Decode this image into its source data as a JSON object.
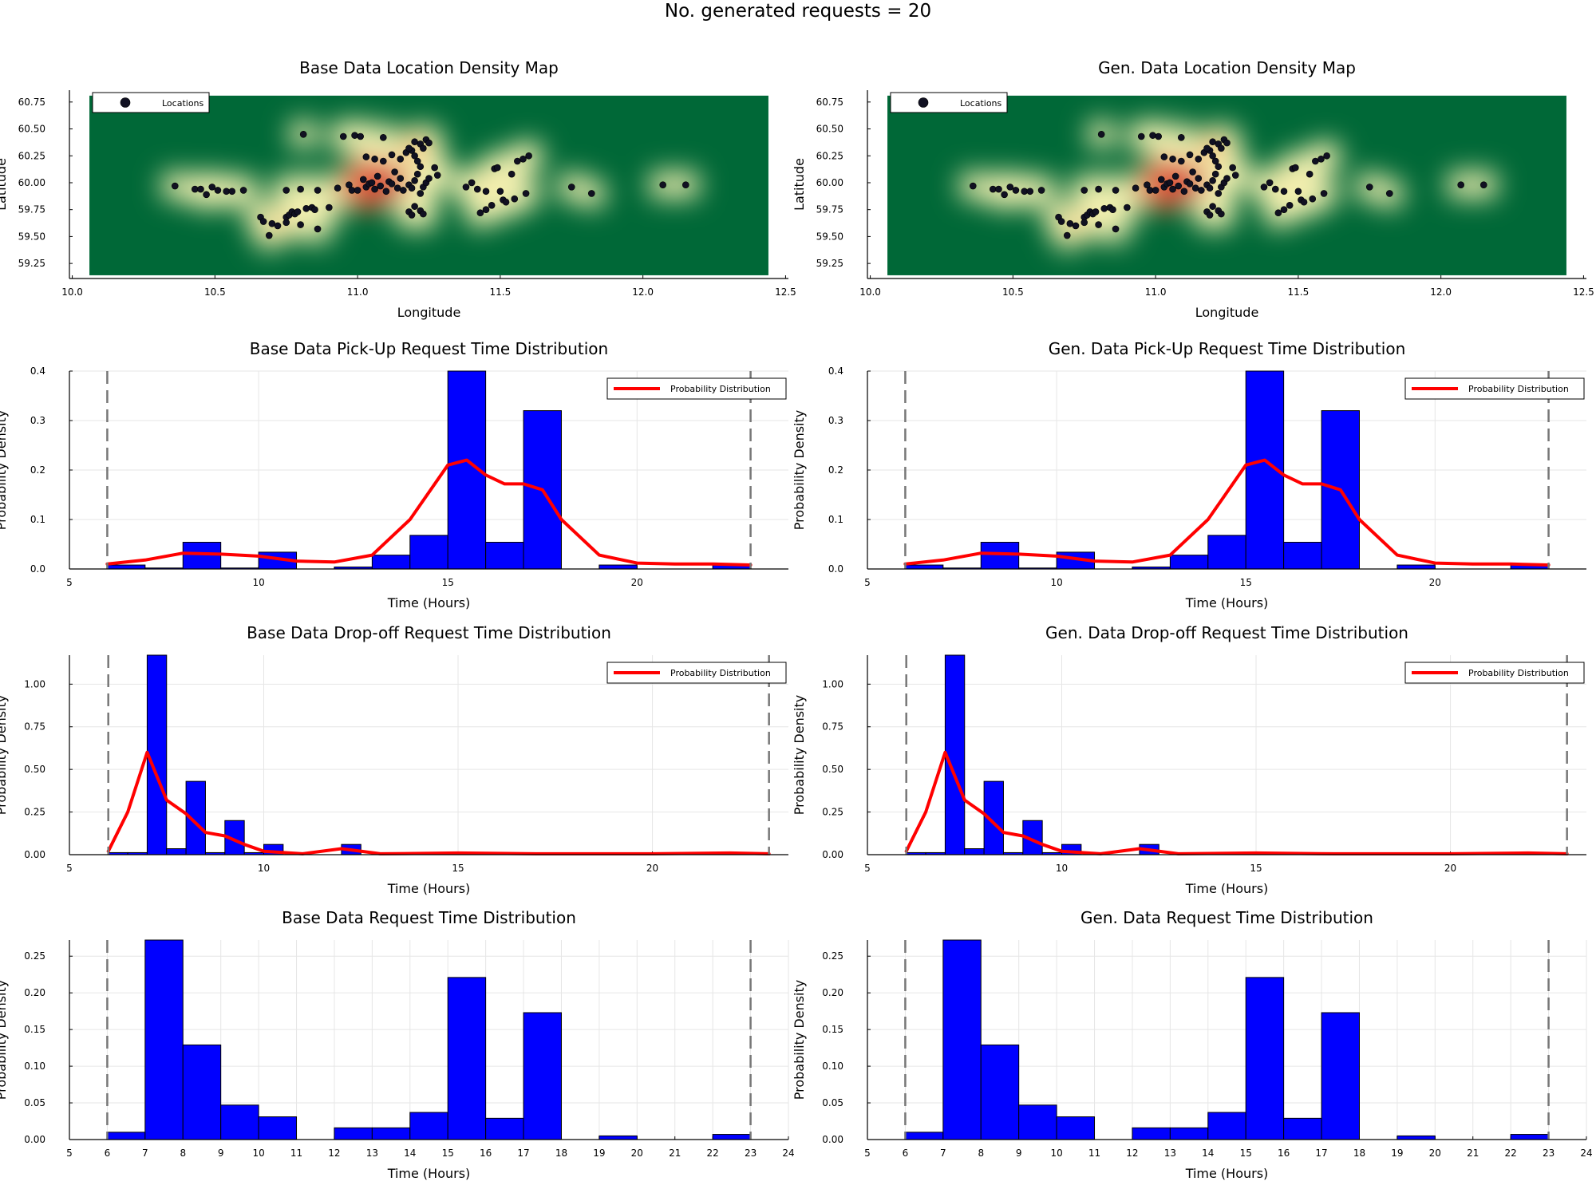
{
  "suptitle": "No. generated requests = 20",
  "colors": {
    "bar": "#0000FF",
    "curve": "#FF0000",
    "points": "#111122",
    "map_background": "#006837",
    "dashed": "#777777"
  },
  "map_points": [
    [
      10.36,
      59.97
    ],
    [
      10.43,
      59.94
    ],
    [
      10.45,
      59.94
    ],
    [
      10.47,
      59.89
    ],
    [
      10.49,
      59.96
    ],
    [
      10.51,
      59.93
    ],
    [
      10.54,
      59.92
    ],
    [
      10.56,
      59.92
    ],
    [
      10.6,
      59.93
    ],
    [
      10.66,
      59.68
    ],
    [
      10.67,
      59.64
    ],
    [
      10.69,
      59.51
    ],
    [
      10.7,
      59.62
    ],
    [
      10.72,
      59.6
    ],
    [
      10.75,
      59.68
    ],
    [
      10.75,
      59.63
    ],
    [
      10.76,
      59.7
    ],
    [
      10.77,
      59.73
    ],
    [
      10.78,
      59.71
    ],
    [
      10.79,
      59.73
    ],
    [
      10.8,
      59.61
    ],
    [
      10.82,
      59.76
    ],
    [
      10.84,
      59.77
    ],
    [
      10.85,
      59.75
    ],
    [
      10.86,
      59.57
    ],
    [
      10.9,
      59.77
    ],
    [
      10.75,
      59.93
    ],
    [
      10.8,
      59.94
    ],
    [
      10.81,
      60.45
    ],
    [
      10.86,
      59.93
    ],
    [
      10.93,
      59.95
    ],
    [
      10.95,
      60.43
    ],
    [
      10.97,
      59.98
    ],
    [
      10.98,
      59.93
    ],
    [
      10.99,
      60.44
    ],
    [
      11.0,
      59.93
    ],
    [
      11.01,
      60.43
    ],
    [
      11.02,
      60.03
    ],
    [
      11.03,
      59.96
    ],
    [
      11.04,
      59.99
    ],
    [
      11.05,
      60.0
    ],
    [
      11.06,
      59.94
    ],
    [
      11.07,
      60.06
    ],
    [
      11.08,
      59.97
    ],
    [
      11.09,
      60.42
    ],
    [
      11.1,
      59.92
    ],
    [
      11.11,
      60.01
    ],
    [
      11.12,
      59.99
    ],
    [
      11.13,
      60.1
    ],
    [
      11.14,
      59.95
    ],
    [
      11.15,
      60.04
    ],
    [
      11.03,
      60.24
    ],
    [
      11.06,
      60.22
    ],
    [
      11.09,
      60.2
    ],
    [
      11.12,
      60.26
    ],
    [
      11.15,
      60.22
    ],
    [
      11.17,
      60.28
    ],
    [
      11.19,
      60.3
    ],
    [
      11.2,
      60.25
    ],
    [
      11.21,
      60.2
    ],
    [
      11.22,
      60.36
    ],
    [
      11.23,
      60.32
    ],
    [
      11.24,
      60.4
    ],
    [
      11.25,
      60.37
    ],
    [
      11.2,
      60.38
    ],
    [
      11.18,
      60.32
    ],
    [
      11.16,
      59.93
    ],
    [
      11.18,
      59.98
    ],
    [
      11.19,
      59.95
    ],
    [
      11.2,
      60.02
    ],
    [
      11.21,
      60.08
    ],
    [
      11.22,
      59.9
    ],
    [
      11.23,
      59.96
    ],
    [
      11.24,
      60.0
    ],
    [
      11.25,
      60.04
    ],
    [
      11.27,
      60.14
    ],
    [
      11.28,
      60.07
    ],
    [
      11.22,
      60.15
    ],
    [
      11.18,
      59.73
    ],
    [
      11.19,
      59.7
    ],
    [
      11.2,
      59.78
    ],
    [
      11.22,
      59.74
    ],
    [
      11.23,
      59.71
    ],
    [
      11.38,
      59.96
    ],
    [
      11.4,
      60.0
    ],
    [
      11.42,
      59.94
    ],
    [
      11.43,
      59.72
    ],
    [
      11.45,
      59.92
    ],
    [
      11.45,
      59.75
    ],
    [
      11.47,
      59.79
    ],
    [
      11.48,
      60.13
    ],
    [
      11.49,
      60.14
    ],
    [
      11.5,
      59.92
    ],
    [
      11.51,
      59.84
    ],
    [
      11.52,
      59.82
    ],
    [
      11.54,
      60.08
    ],
    [
      11.55,
      59.85
    ],
    [
      11.56,
      60.2
    ],
    [
      11.58,
      60.22
    ],
    [
      11.59,
      59.9
    ],
    [
      11.6,
      60.25
    ],
    [
      11.75,
      59.96
    ],
    [
      11.82,
      59.9
    ],
    [
      12.07,
      59.98
    ],
    [
      12.15,
      59.98
    ]
  ],
  "panels": {
    "map_base": {
      "title": "Base Data Location Density Map",
      "xlabel": "Longitude",
      "ylabel": "Latitude",
      "legend": "Locations",
      "xticks": [
        "10.0",
        "10.5",
        "11.0",
        "11.5",
        "12.0",
        "12.5"
      ],
      "yticks": [
        "59.25",
        "59.50",
        "59.75",
        "60.00",
        "60.25",
        "60.50",
        "60.75"
      ]
    },
    "map_gen": {
      "title": "Gen. Data Location Density Map",
      "xlabel": "Longitude",
      "ylabel": "Latitude",
      "legend": "Locations",
      "xticks": [
        "10.0",
        "10.5",
        "11.0",
        "11.5",
        "12.0",
        "12.5"
      ],
      "yticks": [
        "59.25",
        "59.50",
        "59.75",
        "60.00",
        "60.25",
        "60.50",
        "60.75"
      ]
    },
    "pickup_base": {
      "title": "Base Data Pick-Up Request Time Distribution",
      "xlabel": "Time (Hours)",
      "ylabel": "Probability Density",
      "legend": "Probability Distribution",
      "xticks": [
        "5",
        "10",
        "15",
        "20"
      ],
      "yticks": [
        "0.0",
        "0.1",
        "0.2",
        "0.3",
        "0.4"
      ]
    },
    "pickup_gen": {
      "title": "Gen. Data Pick-Up Request Time Distribution",
      "xlabel": "Time (Hours)",
      "ylabel": "Probability Density",
      "legend": "Probability Distribution",
      "xticks": [
        "5",
        "10",
        "15",
        "20"
      ],
      "yticks": [
        "0.0",
        "0.1",
        "0.2",
        "0.3",
        "0.4"
      ]
    },
    "dropoff_base": {
      "title": "Base Data Drop-off Request Time Distribution",
      "xlabel": "Time (Hours)",
      "ylabel": "Probability Density",
      "legend": "Probability Distribution",
      "xticks": [
        "5",
        "10",
        "15",
        "20"
      ],
      "yticks": [
        "0.00",
        "0.25",
        "0.50",
        "0.75",
        "1.00"
      ]
    },
    "dropoff_gen": {
      "title": "Gen. Data Drop-off Request Time Distribution",
      "xlabel": "Time (Hours)",
      "ylabel": "Probability Density",
      "legend": "Probability Distribution",
      "xticks": [
        "5",
        "10",
        "15",
        "20"
      ],
      "yticks": [
        "0.00",
        "0.25",
        "0.50",
        "0.75",
        "1.00"
      ]
    },
    "request_base": {
      "title": "Base Data Request Time Distribution",
      "xlabel": "Time (Hours)",
      "ylabel": "Probability Density",
      "xticks": [
        "5",
        "6",
        "7",
        "8",
        "9",
        "10",
        "11",
        "12",
        "13",
        "14",
        "15",
        "16",
        "17",
        "18",
        "19",
        "20",
        "21",
        "22",
        "23",
        "24"
      ],
      "yticks": [
        "0.00",
        "0.05",
        "0.10",
        "0.15",
        "0.20",
        "0.25"
      ]
    },
    "request_gen": {
      "title": "Gen. Data Request Time Distribution",
      "xlabel": "Time (Hours)",
      "ylabel": "Probability Density",
      "xticks": [
        "5",
        "6",
        "7",
        "8",
        "9",
        "10",
        "11",
        "12",
        "13",
        "14",
        "15",
        "16",
        "17",
        "18",
        "19",
        "20",
        "21",
        "22",
        "23",
        "24"
      ],
      "yticks": [
        "0.00",
        "0.05",
        "0.10",
        "0.15",
        "0.20",
        "0.25"
      ]
    }
  },
  "chart_data": [
    {
      "panel": "map_base",
      "type": "scatter",
      "title": "Base Data Location Density Map",
      "xlabel": "Longitude",
      "ylabel": "Latitude",
      "xlim": [
        9.99,
        12.51
      ],
      "ylim": [
        59.11,
        60.86
      ],
      "density_heatmap_background": true,
      "legend_position": "top-left",
      "series": [
        {
          "name": "Locations",
          "points_ref": "map_points"
        }
      ]
    },
    {
      "panel": "map_gen",
      "type": "scatter",
      "title": "Gen. Data Location Density Map",
      "xlabel": "Longitude",
      "ylabel": "Latitude",
      "xlim": [
        9.99,
        12.51
      ],
      "ylim": [
        59.11,
        60.86
      ],
      "density_heatmap_background": true,
      "legend_position": "top-left",
      "series": [
        {
          "name": "Locations",
          "points_ref": "map_points"
        }
      ]
    },
    {
      "panel": "pickup_base",
      "type": "bar",
      "title": "Base Data Pick-Up Request Time Distribution",
      "xlabel": "Time (Hours)",
      "ylabel": "Probability Density",
      "xlim": [
        5,
        24
      ],
      "ylim": [
        0,
        0.4
      ],
      "bin_width": 1,
      "bins": [
        [
          6,
          0.008
        ],
        [
          7,
          0.002
        ],
        [
          8,
          0.054
        ],
        [
          9,
          0.002
        ],
        [
          10,
          0.034
        ],
        [
          12,
          0.004
        ],
        [
          13,
          0.028
        ],
        [
          14,
          0.068
        ],
        [
          15,
          0.405
        ],
        [
          16,
          0.054
        ],
        [
          17,
          0.32
        ],
        [
          19,
          0.008
        ],
        [
          22,
          0.008
        ]
      ],
      "curve": {
        "name": "Probability Distribution",
        "points": [
          [
            6,
            0.01
          ],
          [
            7,
            0.018
          ],
          [
            8,
            0.032
          ],
          [
            9,
            0.03
          ],
          [
            10,
            0.026
          ],
          [
            11,
            0.016
          ],
          [
            12,
            0.014
          ],
          [
            13,
            0.028
          ],
          [
            14,
            0.1
          ],
          [
            15,
            0.21
          ],
          [
            15.5,
            0.22
          ],
          [
            16,
            0.19
          ],
          [
            16.5,
            0.172
          ],
          [
            17,
            0.172
          ],
          [
            17.5,
            0.16
          ],
          [
            18,
            0.1
          ],
          [
            19,
            0.028
          ],
          [
            20,
            0.012
          ],
          [
            21,
            0.01
          ],
          [
            22,
            0.01
          ],
          [
            23,
            0.008
          ]
        ]
      },
      "vlines": [
        6,
        23
      ],
      "legend_position": "top-right"
    },
    {
      "panel": "pickup_gen",
      "type": "bar",
      "title": "Gen. Data Pick-Up Request Time Distribution",
      "xlabel": "Time (Hours)",
      "ylabel": "Probability Density",
      "xlim": [
        5,
        24
      ],
      "ylim": [
        0,
        0.4
      ],
      "bin_width": 1,
      "bins": [
        [
          6,
          0.008
        ],
        [
          7,
          0.002
        ],
        [
          8,
          0.054
        ],
        [
          9,
          0.002
        ],
        [
          10,
          0.034
        ],
        [
          12,
          0.004
        ],
        [
          13,
          0.028
        ],
        [
          14,
          0.068
        ],
        [
          15,
          0.405
        ],
        [
          16,
          0.054
        ],
        [
          17,
          0.32
        ],
        [
          19,
          0.008
        ],
        [
          22,
          0.008
        ]
      ],
      "curve": {
        "name": "Probability Distribution",
        "points": [
          [
            6,
            0.01
          ],
          [
            7,
            0.018
          ],
          [
            8,
            0.032
          ],
          [
            9,
            0.03
          ],
          [
            10,
            0.026
          ],
          [
            11,
            0.016
          ],
          [
            12,
            0.014
          ],
          [
            13,
            0.028
          ],
          [
            14,
            0.1
          ],
          [
            15,
            0.21
          ],
          [
            15.5,
            0.22
          ],
          [
            16,
            0.19
          ],
          [
            16.5,
            0.172
          ],
          [
            17,
            0.172
          ],
          [
            17.5,
            0.16
          ],
          [
            18,
            0.1
          ],
          [
            19,
            0.028
          ],
          [
            20,
            0.012
          ],
          [
            21,
            0.01
          ],
          [
            22,
            0.01
          ],
          [
            23,
            0.008
          ]
        ]
      },
      "vlines": [
        6,
        23
      ],
      "legend_position": "top-right"
    },
    {
      "panel": "dropoff_base",
      "type": "bar",
      "title": "Base Data Drop-off Request Time Distribution",
      "xlabel": "Time (Hours)",
      "ylabel": "Probability Density",
      "xlim": [
        5,
        23.5
      ],
      "ylim": [
        0,
        1.17
      ],
      "bin_width": 0.5,
      "bins": [
        [
          6,
          0.012
        ],
        [
          6.5,
          0.012
        ],
        [
          7,
          1.17
        ],
        [
          7.5,
          0.035
        ],
        [
          8,
          0.43
        ],
        [
          8.5,
          0.012
        ],
        [
          9,
          0.2
        ],
        [
          9.5,
          0.012
        ],
        [
          10,
          0.06
        ],
        [
          12,
          0.06
        ]
      ],
      "curve": {
        "name": "Probability Distribution",
        "points": [
          [
            6,
            0.02
          ],
          [
            6.5,
            0.25
          ],
          [
            7,
            0.6
          ],
          [
            7.5,
            0.32
          ],
          [
            8,
            0.24
          ],
          [
            8.5,
            0.13
          ],
          [
            9,
            0.11
          ],
          [
            9.5,
            0.06
          ],
          [
            10,
            0.02
          ],
          [
            11,
            0.005
          ],
          [
            12,
            0.035
          ],
          [
            13,
            0.005
          ],
          [
            15,
            0.01
          ],
          [
            17,
            0.005
          ],
          [
            20,
            0.005
          ],
          [
            22,
            0.01
          ],
          [
            23,
            0.005
          ]
        ]
      },
      "vlines": [
        6,
        23
      ],
      "legend_position": "top-right"
    },
    {
      "panel": "dropoff_gen",
      "type": "bar",
      "title": "Gen. Data Drop-off Request Time Distribution",
      "xlabel": "Time (Hours)",
      "ylabel": "Probability Density",
      "xlim": [
        5,
        23.5
      ],
      "ylim": [
        0,
        1.17
      ],
      "bin_width": 0.5,
      "bins": [
        [
          6,
          0.012
        ],
        [
          6.5,
          0.012
        ],
        [
          7,
          1.17
        ],
        [
          7.5,
          0.035
        ],
        [
          8,
          0.43
        ],
        [
          8.5,
          0.012
        ],
        [
          9,
          0.2
        ],
        [
          9.5,
          0.012
        ],
        [
          10,
          0.06
        ],
        [
          12,
          0.06
        ]
      ],
      "curve": {
        "name": "Probability Distribution",
        "points": [
          [
            6,
            0.02
          ],
          [
            6.5,
            0.25
          ],
          [
            7,
            0.6
          ],
          [
            7.5,
            0.32
          ],
          [
            8,
            0.24
          ],
          [
            8.5,
            0.13
          ],
          [
            9,
            0.11
          ],
          [
            9.5,
            0.06
          ],
          [
            10,
            0.02
          ],
          [
            11,
            0.005
          ],
          [
            12,
            0.035
          ],
          [
            13,
            0.005
          ],
          [
            15,
            0.01
          ],
          [
            17,
            0.005
          ],
          [
            20,
            0.005
          ],
          [
            22,
            0.01
          ],
          [
            23,
            0.005
          ]
        ]
      },
      "vlines": [
        6,
        23
      ],
      "legend_position": "top-right"
    },
    {
      "panel": "request_base",
      "type": "bar",
      "title": "Base Data Request Time Distribution",
      "xlabel": "Time (Hours)",
      "ylabel": "Probability Density",
      "xlim": [
        5,
        24
      ],
      "ylim": [
        0,
        0.272
      ],
      "bin_width": 1,
      "bins": [
        [
          6,
          0.01
        ],
        [
          7,
          0.272
        ],
        [
          8,
          0.129
        ],
        [
          9,
          0.047
        ],
        [
          10,
          0.031
        ],
        [
          12,
          0.016
        ],
        [
          13,
          0.016
        ],
        [
          14,
          0.037
        ],
        [
          15,
          0.221
        ],
        [
          16,
          0.029
        ],
        [
          17,
          0.173
        ],
        [
          19,
          0.005
        ],
        [
          22,
          0.007
        ]
      ],
      "vlines": [
        6,
        23
      ]
    },
    {
      "panel": "request_gen",
      "type": "bar",
      "title": "Gen. Data Request Time Distribution",
      "xlabel": "Time (Hours)",
      "ylabel": "Probability Density",
      "xlim": [
        5,
        24
      ],
      "ylim": [
        0,
        0.272
      ],
      "bin_width": 1,
      "bins": [
        [
          6,
          0.01
        ],
        [
          7,
          0.272
        ],
        [
          8,
          0.129
        ],
        [
          9,
          0.047
        ],
        [
          10,
          0.031
        ],
        [
          12,
          0.016
        ],
        [
          13,
          0.016
        ],
        [
          14,
          0.037
        ],
        [
          15,
          0.221
        ],
        [
          16,
          0.029
        ],
        [
          17,
          0.173
        ],
        [
          19,
          0.005
        ],
        [
          22,
          0.007
        ]
      ],
      "vlines": [
        6,
        23
      ]
    }
  ]
}
